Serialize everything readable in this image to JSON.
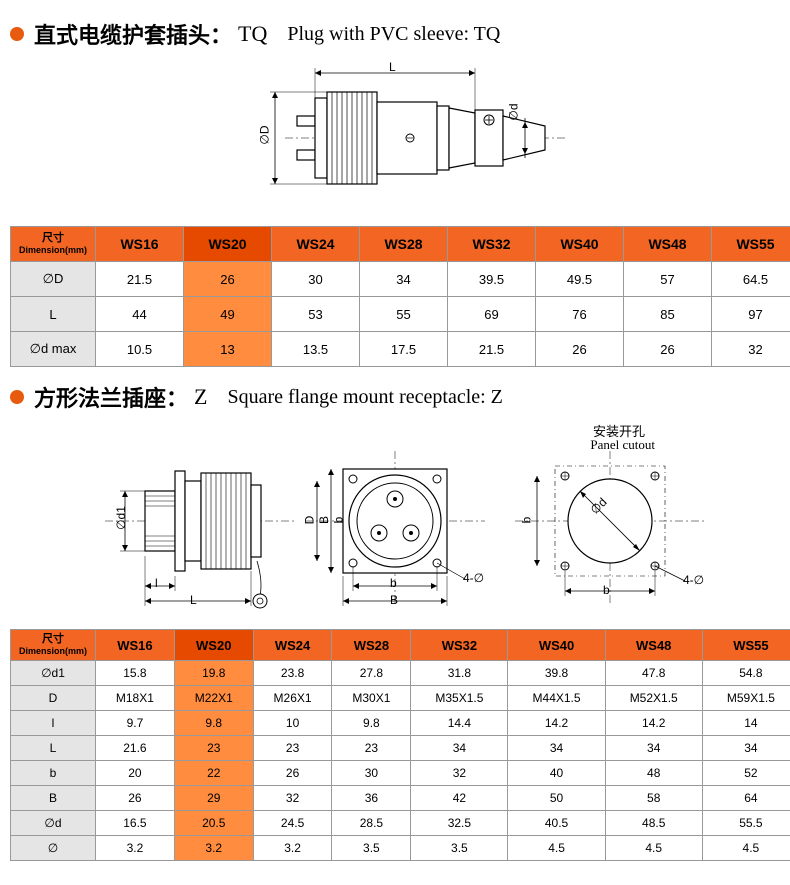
{
  "section1": {
    "title_cn": "直式电缆护套插头：",
    "title_code": "TQ",
    "title_en": "Plug with PVC sleeve: TQ",
    "drawing_labels": {
      "L": "L",
      "D": "∅D",
      "d": "∅d"
    }
  },
  "table1": {
    "hdr_label": "尺寸\nDimension(mm)",
    "columns": [
      "WS16",
      "WS20",
      "WS24",
      "WS28",
      "WS32",
      "WS40",
      "WS48",
      "WS55"
    ],
    "highlight_col": 1,
    "rows": [
      {
        "name": "∅D",
        "vals": [
          "21.5",
          "26",
          "30",
          "34",
          "39.5",
          "49.5",
          "57",
          "64.5"
        ]
      },
      {
        "name": "L",
        "vals": [
          "44",
          "49",
          "53",
          "55",
          "69",
          "76",
          "85",
          "97"
        ]
      },
      {
        "name": "∅d max",
        "vals": [
          "10.5",
          "13",
          "13.5",
          "17.5",
          "21.5",
          "26",
          "26",
          "32"
        ]
      }
    ]
  },
  "section2": {
    "title_cn": "方形法兰插座：",
    "title_code": "Z",
    "title_en": "Square flange mount receptacle: Z",
    "cutout_cn": "安装开孔",
    "cutout_en": "Panel cutout",
    "drawing_labels": {
      "d1": "∅d1",
      "D": "D",
      "l": "l",
      "L": "L",
      "B": "B",
      "b": "b",
      "holes": "4-∅",
      "d": "∅d"
    }
  },
  "table2": {
    "hdr_label": "尺寸\nDimension(mm)",
    "columns": [
      "WS16",
      "WS20",
      "WS24",
      "WS28",
      "WS32",
      "WS40",
      "WS48",
      "WS55"
    ],
    "highlight_col": 1,
    "rows": [
      {
        "name": "∅d1",
        "vals": [
          "15.8",
          "19.8",
          "23.8",
          "27.8",
          "31.8",
          "39.8",
          "47.8",
          "54.8"
        ]
      },
      {
        "name": "D",
        "vals": [
          "M18X1",
          "M22X1",
          "M26X1",
          "M30X1",
          "M35X1.5",
          "M44X1.5",
          "M52X1.5",
          "M59X1.5"
        ]
      },
      {
        "name": "l",
        "vals": [
          "9.7",
          "9.8",
          "10",
          "9.8",
          "14.4",
          "14.2",
          "14.2",
          "14"
        ]
      },
      {
        "name": "L",
        "vals": [
          "21.6",
          "23",
          "23",
          "23",
          "34",
          "34",
          "34",
          "34"
        ]
      },
      {
        "name": "b",
        "vals": [
          "20",
          "22",
          "26",
          "30",
          "32",
          "40",
          "48",
          "52"
        ]
      },
      {
        "name": "B",
        "vals": [
          "26",
          "29",
          "32",
          "36",
          "42",
          "50",
          "58",
          "64"
        ]
      },
      {
        "name": "∅d",
        "vals": [
          "16.5",
          "20.5",
          "24.5",
          "28.5",
          "32.5",
          "40.5",
          "48.5",
          "55.5"
        ]
      },
      {
        "name": "∅",
        "vals": [
          "3.2",
          "3.2",
          "3.2",
          "3.5",
          "3.5",
          "4.5",
          "4.5",
          "4.5"
        ]
      }
    ]
  },
  "styling": {
    "header_bg": "#f26522",
    "highlight_bg": "#ff8c3f",
    "rowhdr_bg": "#e5e5e5",
    "border_color": "#999999"
  }
}
